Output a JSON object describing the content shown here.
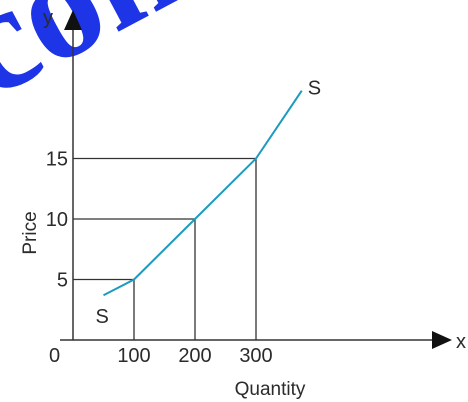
{
  "watermark": {
    "text": "com",
    "color": "#1d35e6"
  },
  "chart_data": {
    "type": "line",
    "title": "",
    "xlabel": "Quantity",
    "ylabel": "Price",
    "x_axis_letter": "x",
    "y_axis_letter": "y",
    "origin_label": "0",
    "xlim": [
      0,
      390
    ],
    "ylim": [
      0,
      21
    ],
    "x_ticks": [
      100,
      200,
      300
    ],
    "x_tick_labels": [
      "100",
      "200",
      "300"
    ],
    "y_ticks": [
      5,
      10,
      15
    ],
    "y_tick_labels": [
      "5",
      "10",
      "15"
    ],
    "grid": false,
    "series": [
      {
        "name": "S",
        "color": "#1a9bbf",
        "x": [
          50,
          100,
          200,
          300,
          375
        ],
        "y": [
          3.7,
          5,
          10,
          15,
          20.6
        ],
        "start_label": "S",
        "end_label": "S"
      }
    ],
    "guide_points": [
      {
        "x": 100,
        "y": 5
      },
      {
        "x": 200,
        "y": 10
      },
      {
        "x": 300,
        "y": 15
      }
    ]
  }
}
